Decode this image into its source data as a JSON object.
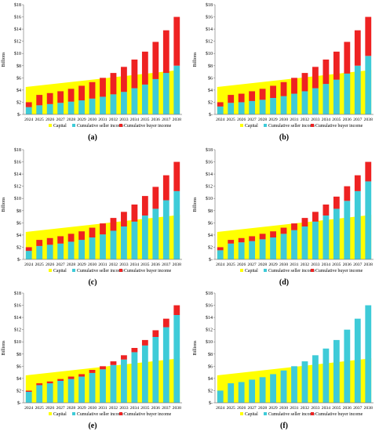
{
  "colors": {
    "capital": "#ffff00",
    "seller": "#3ecbd8",
    "buyer": "#ee2222",
    "axis": "#7f7f7f"
  },
  "axis": {
    "ylabel": "Billions",
    "yticks": [
      "$-",
      "$2",
      "$4",
      "$6",
      "$8",
      "$10",
      "$12",
      "$14",
      "$16",
      "$18"
    ],
    "ylim": [
      0,
      18
    ]
  },
  "legend": {
    "capital": "Capital",
    "seller": "Cumulative seller income",
    "buyer": "Cumulative buyer income"
  },
  "chart_data": [
    {
      "type": "bar",
      "label": "(a)",
      "categories": [
        "2024",
        "2025",
        "2026",
        "2027",
        "2028",
        "2029",
        "2030",
        "2031",
        "2032",
        "2033",
        "2034",
        "2035",
        "2036",
        "2037",
        "2038"
      ],
      "capital_area": [
        4.5,
        7.3
      ],
      "series": [
        {
          "name": "Cumulative seller income",
          "values": [
            1.2,
            1.5,
            1.7,
            1.9,
            2.1,
            2.3,
            2.6,
            2.9,
            3.3,
            3.7,
            4.3,
            4.9,
            5.8,
            6.8,
            8.0
          ]
        },
        {
          "name": "Cumulative buyer income",
          "values": [
            0.8,
            1.7,
            1.8,
            1.9,
            2.1,
            2.4,
            2.7,
            3.1,
            3.5,
            4.1,
            4.7,
            5.4,
            6.1,
            7.0,
            8.0
          ]
        }
      ]
    },
    {
      "type": "bar",
      "label": "(b)",
      "categories": [
        "2024",
        "2025",
        "2026",
        "2027",
        "2028",
        "2029",
        "2030",
        "2031",
        "2032",
        "2033",
        "2034",
        "2035",
        "2036",
        "2037",
        "2038"
      ],
      "capital_area": [
        4.5,
        7.3
      ],
      "series": [
        {
          "name": "Cumulative seller income",
          "values": [
            1.3,
            1.9,
            2.0,
            2.2,
            2.4,
            2.7,
            3.0,
            3.4,
            3.8,
            4.3,
            5.0,
            5.7,
            6.7,
            8.0,
            9.6
          ]
        },
        {
          "name": "Cumulative buyer income",
          "values": [
            0.7,
            1.3,
            1.4,
            1.6,
            1.8,
            2.0,
            2.3,
            2.6,
            3.0,
            3.5,
            4.0,
            4.6,
            5.2,
            5.8,
            6.4
          ]
        }
      ]
    },
    {
      "type": "bar",
      "label": "(c)",
      "categories": [
        "2024",
        "2025",
        "2026",
        "2027",
        "2028",
        "2029",
        "2030",
        "2031",
        "2032",
        "2033",
        "2034",
        "2035",
        "2036",
        "2037",
        "2038"
      ],
      "capital_area": [
        4.5,
        7.3
      ],
      "series": [
        {
          "name": "Cumulative seller income",
          "values": [
            1.4,
            2.2,
            2.4,
            2.6,
            2.9,
            3.2,
            3.6,
            4.1,
            4.7,
            5.4,
            6.2,
            7.2,
            8.3,
            9.7,
            11.2
          ]
        },
        {
          "name": "Cumulative buyer income",
          "values": [
            0.6,
            1.0,
            1.1,
            1.2,
            1.3,
            1.4,
            1.6,
            1.8,
            2.1,
            2.4,
            2.8,
            3.2,
            3.6,
            4.1,
            4.8
          ]
        }
      ]
    },
    {
      "type": "bar",
      "label": "(d)",
      "categories": [
        "2024",
        "2025",
        "2026",
        "2027",
        "2028",
        "2029",
        "2030",
        "2031",
        "2032",
        "2033",
        "2034",
        "2035",
        "2036",
        "2037",
        "2038"
      ],
      "capital_area": [
        4.5,
        7.3
      ],
      "series": [
        {
          "name": "Cumulative seller income",
          "values": [
            1.5,
            2.6,
            2.8,
            3.0,
            3.3,
            3.6,
            4.2,
            4.8,
            5.4,
            6.2,
            7.2,
            8.3,
            9.6,
            11.2,
            12.8
          ]
        },
        {
          "name": "Cumulative buyer income",
          "values": [
            0.5,
            0.6,
            0.7,
            0.8,
            0.9,
            1.0,
            1.0,
            1.1,
            1.4,
            1.6,
            1.8,
            2.0,
            2.4,
            2.6,
            3.2
          ]
        }
      ]
    },
    {
      "type": "bar",
      "label": "(e)",
      "categories": [
        "2024",
        "2025",
        "2026",
        "2027",
        "2028",
        "2029",
        "2030",
        "2031",
        "2032",
        "2033",
        "2034",
        "2035",
        "2036",
        "2037",
        "2038"
      ],
      "capital_area": [
        4.5,
        7.3
      ],
      "series": [
        {
          "name": "Cumulative seller income",
          "values": [
            1.8,
            2.9,
            3.2,
            3.6,
            3.9,
            4.3,
            4.9,
            5.5,
            6.2,
            7.1,
            8.3,
            9.4,
            10.8,
            12.4,
            14.4
          ]
        },
        {
          "name": "Cumulative buyer income",
          "values": [
            0.2,
            0.3,
            0.3,
            0.3,
            0.4,
            0.4,
            0.5,
            0.5,
            0.6,
            0.7,
            0.7,
            0.9,
            1.1,
            1.4,
            1.6
          ]
        }
      ]
    },
    {
      "type": "bar",
      "label": "(f)",
      "categories": [
        "2024",
        "2025",
        "2026",
        "2027",
        "2028",
        "2029",
        "2030",
        "2031",
        "2032",
        "2033",
        "2034",
        "2035",
        "2036",
        "2037",
        "2038"
      ],
      "capital_area": [
        4.5,
        7.3
      ],
      "series": [
        {
          "name": "Cumulative seller income",
          "values": [
            2.0,
            3.2,
            3.4,
            3.8,
            4.2,
            4.7,
            5.3,
            6.0,
            6.8,
            7.8,
            8.9,
            10.3,
            12.0,
            13.8,
            16.0
          ]
        },
        {
          "name": "Cumulative buyer income",
          "values": [
            0,
            0,
            0,
            0,
            0,
            0,
            0,
            0,
            0,
            0,
            0,
            0,
            0,
            0,
            0
          ]
        }
      ]
    }
  ]
}
